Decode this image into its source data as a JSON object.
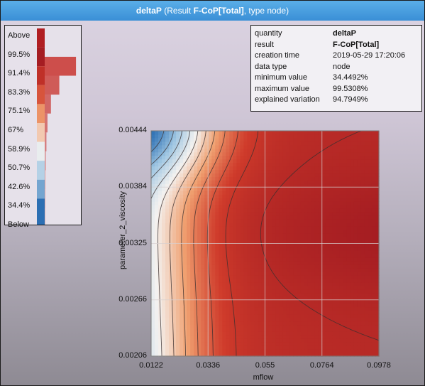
{
  "window": {
    "title_bold": "deltaP",
    "title_mid": " (Result ",
    "title_result": "F-CoP[Total]",
    "title_end": ", type node)"
  },
  "legend": {
    "labels": [
      "Above",
      "99.5%",
      "91.4%",
      "83.3%",
      "75.1%",
      "67%",
      "58.9%",
      "50.7%",
      "42.6%",
      "34.4%",
      "Below"
    ],
    "histogram_fractions": [
      0.0,
      0.9,
      0.42,
      0.18,
      0.08,
      0.05,
      0.03,
      0.02,
      0.02,
      0.02
    ],
    "colors": {
      "above": "#b01e22",
      "below": "#2c6fb3",
      "histogram": "#c8302a"
    }
  },
  "info": {
    "rows": [
      {
        "key": "quantity",
        "value": "deltaP",
        "bold": true
      },
      {
        "key": "result",
        "value": "F-CoP[Total]",
        "bold": true
      },
      {
        "key": "creation time",
        "value": "2019-05-29 17:20:06",
        "bold": false
      },
      {
        "key": "data type",
        "value": "node",
        "bold": false
      },
      {
        "key": "minimum value",
        "value": "34.4492%",
        "bold": false
      },
      {
        "key": "maximum value",
        "value": "99.5308%",
        "bold": false
      },
      {
        "key": "explained variation",
        "value": "94.7949%",
        "bold": false
      }
    ]
  },
  "chart_data": {
    "type": "heatmap",
    "title": "",
    "xlabel": "mflow",
    "ylabel": "parameter_2_viscosity",
    "xlim": [
      0.0122,
      0.0978
    ],
    "ylim": [
      0.00206,
      0.00444
    ],
    "x_ticks": [
      "0.0122",
      "0.0336",
      "0.055",
      "0.0764",
      "0.0978"
    ],
    "y_ticks": [
      "0.00444",
      "0.00384",
      "0.00325",
      "0.00266",
      "0.00206"
    ],
    "grid": true,
    "value_range": [
      34.4492,
      99.5308
    ],
    "colormap": [
      "#2c6fb3",
      "#9fc6e2",
      "#f4f2f0",
      "#f0a070",
      "#cf3b2b",
      "#a51d22"
    ]
  }
}
